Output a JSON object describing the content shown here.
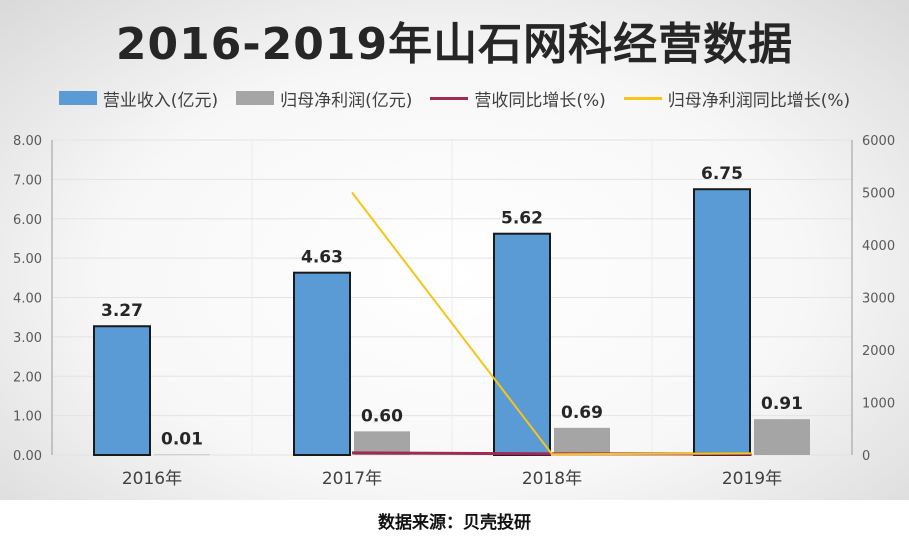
{
  "title": "2016-2019年山石网科经营数据",
  "footer": "数据来源：贝壳投研",
  "colors": {
    "revenue": "#5b9bd5",
    "profit": "#a5a5a5",
    "revenue_growth": "#9e2b55",
    "profit_growth": "#f5c518"
  },
  "legend": [
    {
      "label": "营业收入(亿元)",
      "kind": "box",
      "color": "#5b9bd5"
    },
    {
      "label": "归母净利润(亿元)",
      "kind": "box",
      "color": "#a5a5a5"
    },
    {
      "label": "营收同比增长(%)",
      "kind": "line",
      "color": "#9e2b55"
    },
    {
      "label": "归母净利润同比增长(%)",
      "kind": "line",
      "color": "#f5c518"
    }
  ],
  "chart_data": {
    "type": "bar",
    "categories": [
      "2016年",
      "2017年",
      "2018年",
      "2019年"
    ],
    "series": [
      {
        "name": "营业收入(亿元)",
        "type": "bar",
        "axis": "left",
        "values": [
          3.27,
          4.63,
          5.62,
          6.75
        ],
        "labels": [
          "3.27",
          "4.63",
          "5.62",
          "6.75"
        ]
      },
      {
        "name": "归母净利润(亿元)",
        "type": "bar",
        "axis": "left",
        "values": [
          0.01,
          0.6,
          0.69,
          0.91
        ],
        "labels": [
          "0.01",
          "0.60",
          "0.69",
          "0.91"
        ]
      },
      {
        "name": "营收同比增长(%)",
        "type": "line",
        "axis": "right",
        "values": [
          null,
          41.6,
          21.4,
          20.1
        ]
      },
      {
        "name": "归母净利润同比增长(%)",
        "type": "line",
        "axis": "right",
        "values": [
          null,
          5000,
          15,
          32
        ]
      }
    ],
    "ylim": [
      0,
      8
    ],
    "y_ticks": [
      "0.00",
      "1.00",
      "2.00",
      "3.00",
      "4.00",
      "5.00",
      "6.00",
      "7.00",
      "8.00"
    ],
    "y2lim": [
      0,
      6000
    ],
    "y2_ticks": [
      "0",
      "1000",
      "2000",
      "3000",
      "4000",
      "5000",
      "6000"
    ],
    "grid": true,
    "legend_position": "top"
  }
}
